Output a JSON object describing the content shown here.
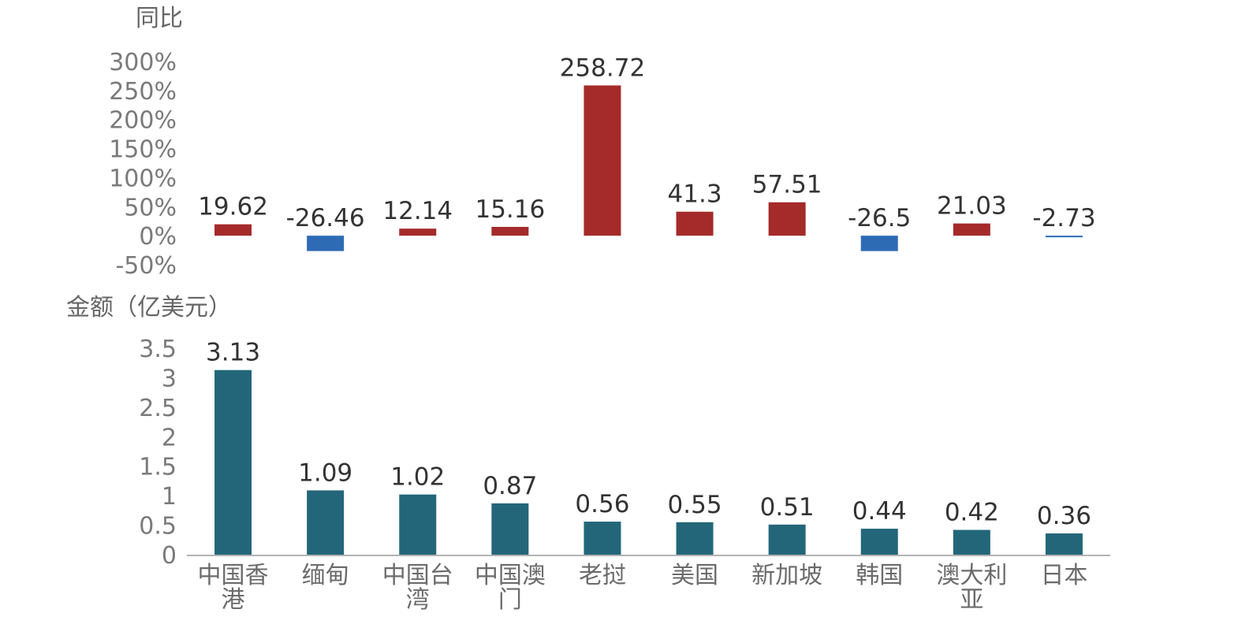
{
  "chart_data": [
    {
      "type": "bar",
      "title": "同比",
      "categories": [
        "中国香港",
        "缅甸",
        "中国台湾",
        "中国澳门",
        "老挝",
        "美国",
        "新加坡",
        "韩国",
        "澳大利亚",
        "日本"
      ],
      "values": [
        19.62,
        -26.46,
        12.14,
        15.16,
        258.72,
        41.3,
        57.51,
        -26.5,
        21.03,
        -2.73
      ],
      "data_labels": [
        "19.62",
        "-26.46",
        "12.14",
        "15.16",
        "258.72",
        "41.3",
        "57.51",
        "-26.5",
        "21.03",
        "-2.73"
      ],
      "yticks": [
        "300%",
        "250%",
        "200%",
        "150%",
        "100%",
        "50%",
        "0%",
        "-50%"
      ],
      "ylim": [
        -50,
        300
      ],
      "grid": false,
      "colors": {
        "positive": "#a52a2a",
        "negative": "#2e6bb5"
      }
    },
    {
      "type": "bar",
      "title": "金额（亿美元）",
      "categories": [
        "中国香港",
        "缅甸",
        "中国台湾",
        "中国澳门",
        "老挝",
        "美国",
        "新加坡",
        "韩国",
        "澳大利亚",
        "日本"
      ],
      "values": [
        3.13,
        1.09,
        1.02,
        0.87,
        0.56,
        0.55,
        0.51,
        0.44,
        0.42,
        0.36
      ],
      "data_labels": [
        "3.13",
        "1.09",
        "1.02",
        "0.87",
        "0.56",
        "0.55",
        "0.51",
        "0.44",
        "0.42",
        "0.36"
      ],
      "yticks": [
        "3.5",
        "3",
        "2.5",
        "2",
        "1.5",
        "1",
        "0.5",
        "0"
      ],
      "ylim": [
        0,
        3.5
      ],
      "grid": false,
      "colors": {
        "bar": "#23667a"
      }
    }
  ],
  "category_labels": [
    [
      "中国香",
      "港"
    ],
    [
      "缅甸"
    ],
    [
      "中国台",
      "湾"
    ],
    [
      "中国澳",
      "门"
    ],
    [
      "老挝"
    ],
    [
      "美国"
    ],
    [
      "新加坡"
    ],
    [
      "韩国"
    ],
    [
      "澳大利",
      "亚"
    ],
    [
      "日本"
    ]
  ]
}
